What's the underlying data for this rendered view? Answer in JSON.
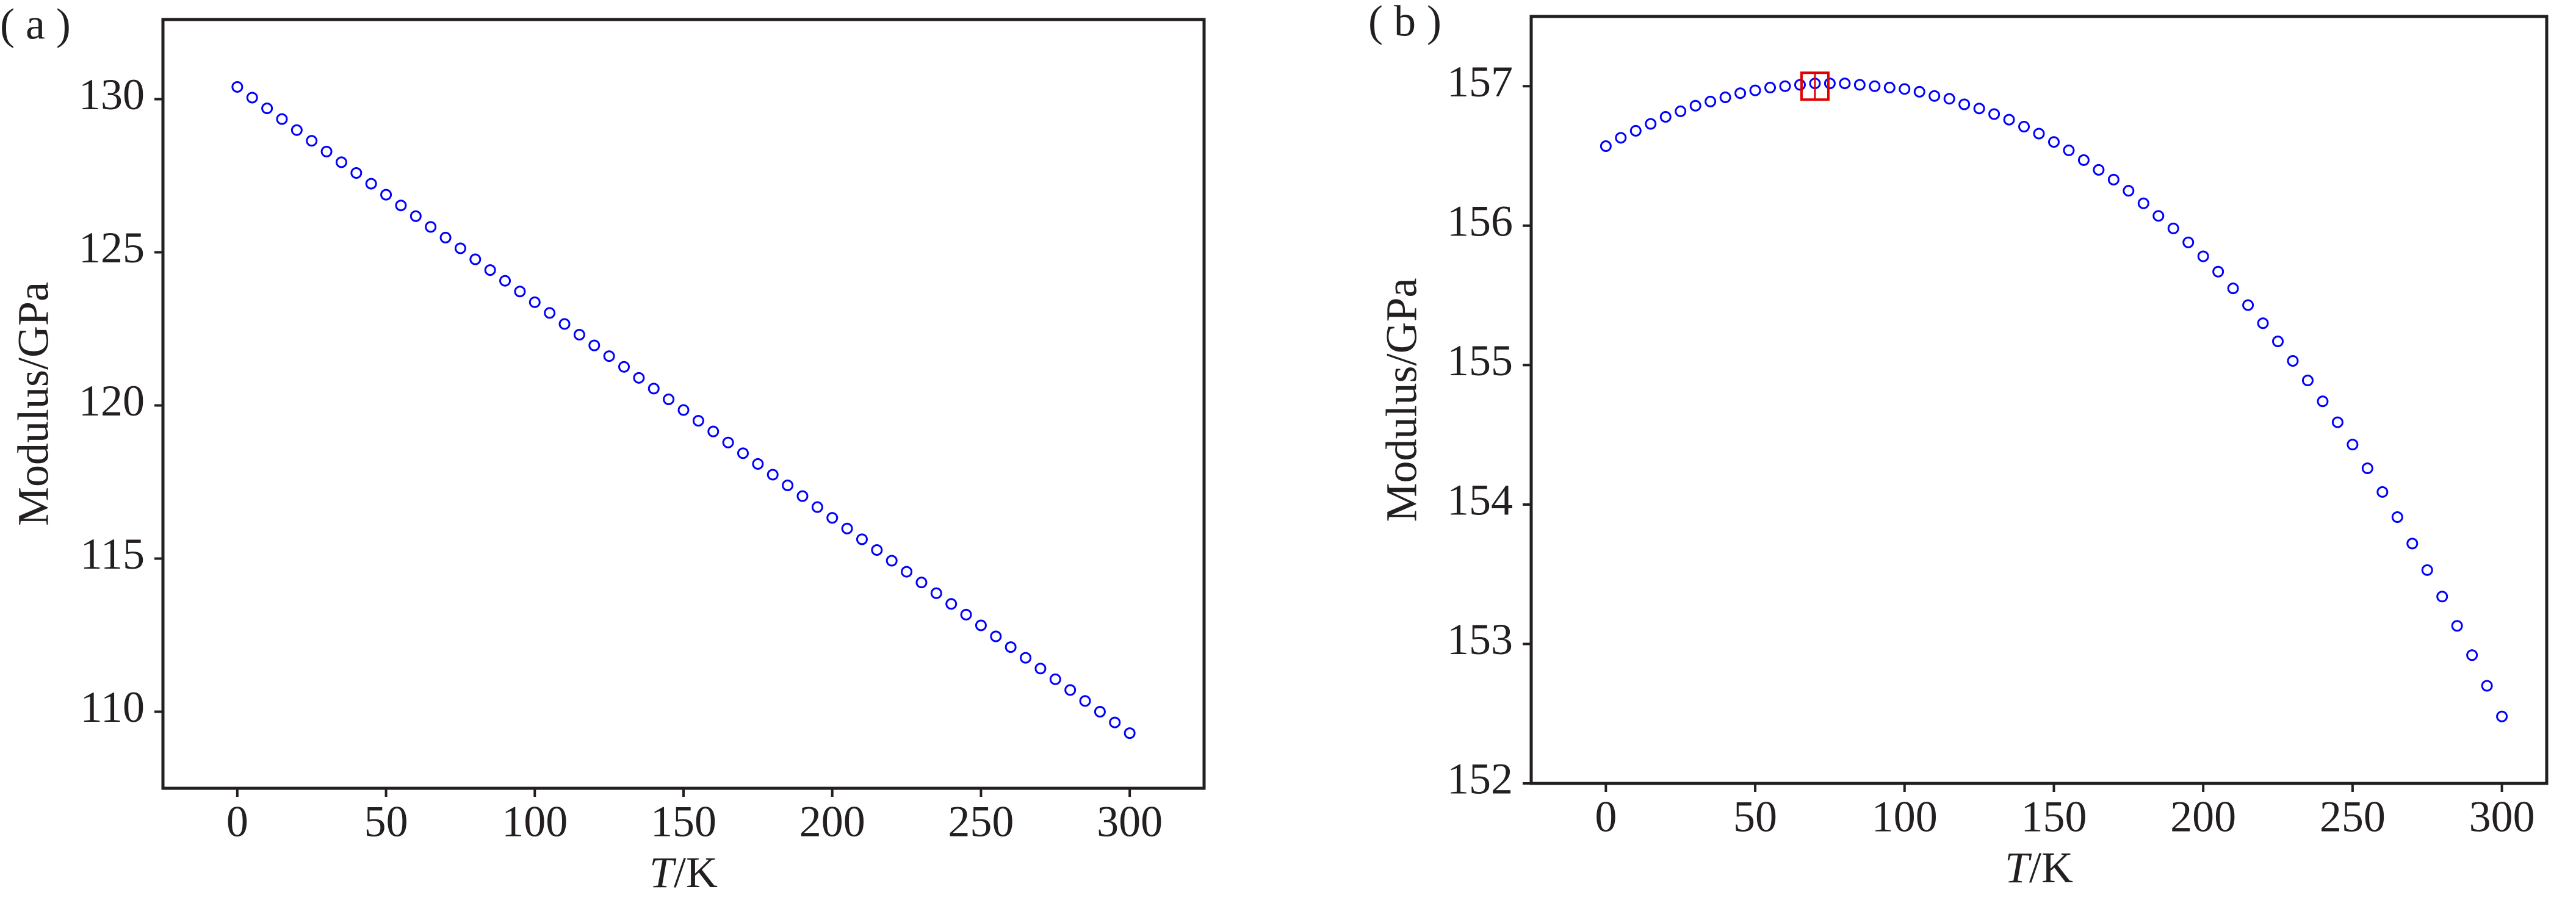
{
  "chart_data": [
    {
      "type": "scatter",
      "panel_label": "( a )",
      "ylabel": "Modulus/GPa",
      "xlabel_symbol": "T",
      "xlabel_unit": "/K",
      "xlim": [
        -25,
        325
      ],
      "xticks": [
        0,
        50,
        100,
        150,
        200,
        250,
        300
      ],
      "ylim": [
        107.5,
        132.6
      ],
      "yticks": [
        110,
        115,
        120,
        125,
        130
      ],
      "x": [
        0,
        5,
        10,
        15,
        20,
        25,
        30,
        35,
        40,
        45,
        50,
        55,
        60,
        65,
        70,
        75,
        80,
        85,
        90,
        95,
        100,
        105,
        110,
        115,
        120,
        125,
        130,
        135,
        140,
        145,
        150,
        155,
        160,
        165,
        170,
        175,
        180,
        185,
        190,
        195,
        200,
        205,
        210,
        215,
        220,
        225,
        230,
        235,
        240,
        245,
        250,
        255,
        260,
        265,
        270,
        275,
        280,
        285,
        290,
        295,
        300
      ],
      "series": [
        {
          "color": "#0000ff",
          "values": [
            130.4,
            130.05,
            129.7,
            129.35,
            128.99,
            128.64,
            128.29,
            127.94,
            127.59,
            127.24,
            126.88,
            126.53,
            126.18,
            125.83,
            125.48,
            125.13,
            124.77,
            124.42,
            124.07,
            123.72,
            123.37,
            123.02,
            122.66,
            122.31,
            121.96,
            121.61,
            121.26,
            120.9,
            120.55,
            120.2,
            119.85,
            119.5,
            119.15,
            118.79,
            118.44,
            118.09,
            117.74,
            117.39,
            117.04,
            116.68,
            116.33,
            115.98,
            115.63,
            115.28,
            114.93,
            114.57,
            114.22,
            113.87,
            113.52,
            113.17,
            112.82,
            112.46,
            112.11,
            111.76,
            111.41,
            111.06,
            110.71,
            110.35,
            110.0,
            109.65,
            109.3
          ]
        }
      ]
    },
    {
      "type": "scatter",
      "panel_label": "( b )",
      "ylabel": "Modulus/GPa",
      "xlabel_symbol": "T",
      "xlabel_unit": "/K",
      "xlim": [
        -25,
        315
      ],
      "xticks": [
        0,
        50,
        100,
        150,
        200,
        250,
        300
      ],
      "ylim": [
        152,
        157.5
      ],
      "yticks": [
        152,
        153,
        154,
        155,
        156,
        157
      ],
      "x": [
        0,
        5,
        10,
        15,
        20,
        25,
        30,
        35,
        40,
        45,
        50,
        55,
        60,
        65,
        70,
        75,
        80,
        85,
        90,
        95,
        100,
        105,
        110,
        115,
        120,
        125,
        130,
        135,
        140,
        145,
        150,
        155,
        160,
        165,
        170,
        175,
        180,
        185,
        190,
        195,
        200,
        205,
        210,
        215,
        220,
        225,
        230,
        235,
        240,
        245,
        250,
        255,
        260,
        265,
        270,
        275,
        280,
        285,
        290,
        295,
        300
      ],
      "series": [
        {
          "color": "#0000ff",
          "values": [
            156.57,
            156.63,
            156.68,
            156.73,
            156.78,
            156.82,
            156.86,
            156.89,
            156.92,
            156.95,
            156.97,
            156.99,
            157.0,
            157.01,
            157.02,
            157.02,
            157.02,
            157.01,
            157.0,
            156.99,
            156.98,
            156.96,
            156.93,
            156.91,
            156.87,
            156.84,
            156.8,
            156.76,
            156.71,
            156.66,
            156.6,
            156.54,
            156.47,
            156.4,
            156.33,
            156.25,
            156.16,
            156.07,
            155.98,
            155.88,
            155.78,
            155.67,
            155.55,
            155.43,
            155.3,
            155.17,
            155.03,
            154.89,
            154.74,
            154.59,
            154.43,
            154.26,
            154.09,
            153.91,
            153.72,
            153.53,
            153.34,
            153.13,
            152.92,
            152.7,
            152.48
          ]
        }
      ],
      "highlight": {
        "x": 70,
        "y": 157.0,
        "color": "#e00000"
      }
    }
  ]
}
